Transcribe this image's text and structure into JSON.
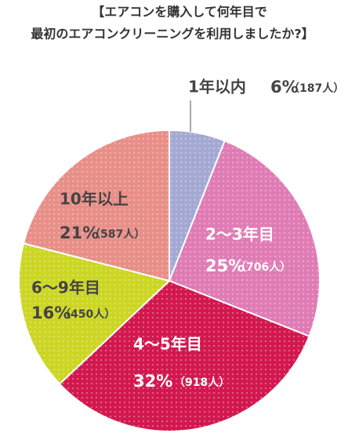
{
  "chart_data": {
    "type": "pie",
    "title_lines": [
      "【エアコンを購入して何年目で",
      "最初のエアコンクリーニングを利用しましたか?】"
    ],
    "categories": [
      "1年以内",
      "2〜3年目",
      "4〜5年目",
      "6〜9年目",
      "10年以上"
    ],
    "values": [
      6,
      25,
      32,
      16,
      21
    ],
    "value_labels": [
      "6%",
      "25%",
      "32%",
      "16%",
      "21%"
    ],
    "counts": [
      187,
      706,
      918,
      450,
      587
    ],
    "count_labels": [
      "（187人）",
      "（706人）",
      "（918人）",
      "（450人）",
      "（587人）"
    ],
    "colors": [
      "#a3a9d2",
      "#e07cb5",
      "#d2184f",
      "#ccd624",
      "#e88f88"
    ]
  }
}
